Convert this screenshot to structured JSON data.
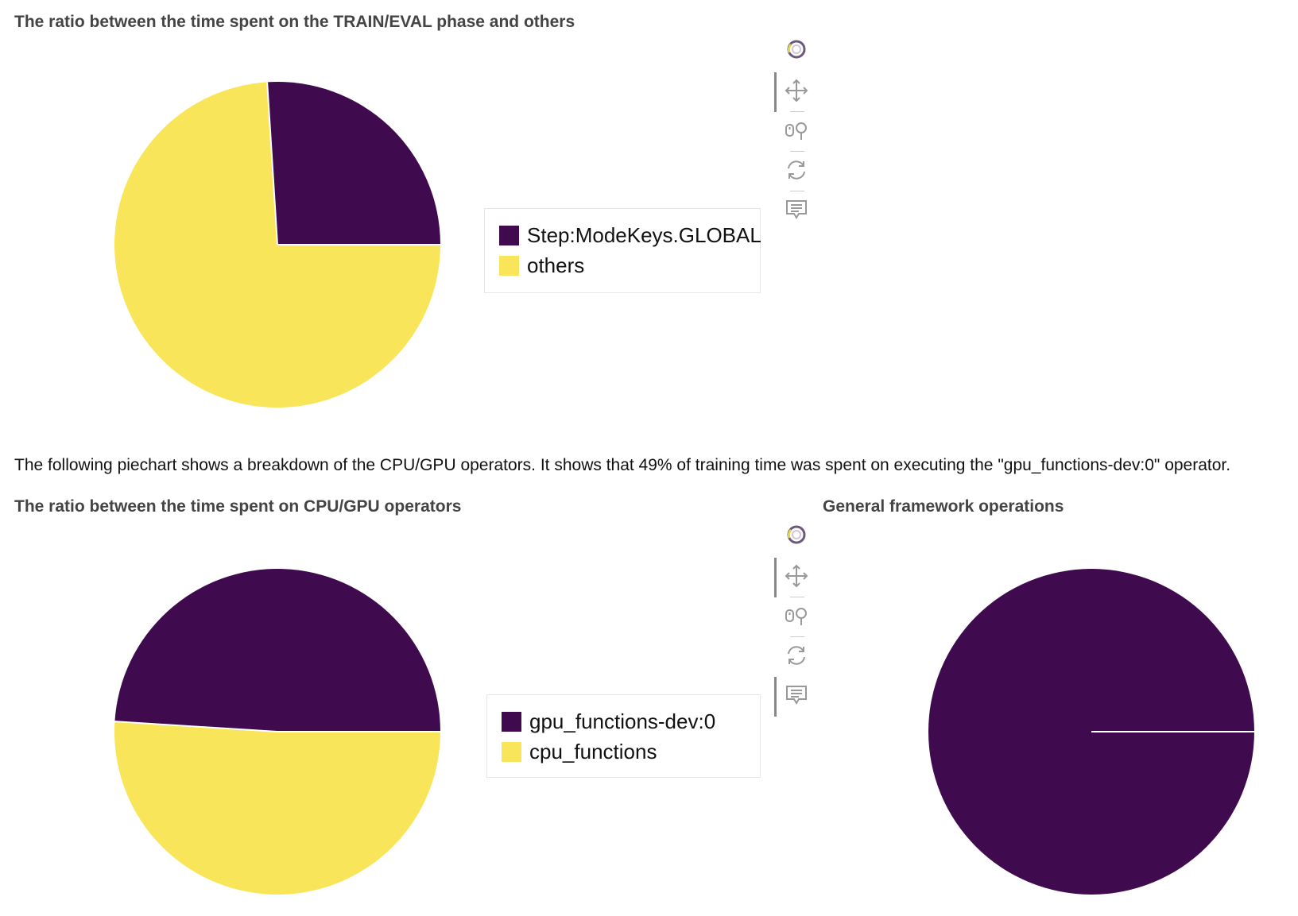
{
  "description": "The following piechart shows a breakdown of the CPU/GPU operators. It shows that 49% of training time was spent on executing the \"gpu_functions-dev:0\" operator.",
  "toolbar_icons": [
    "bokeh-logo-icon",
    "pan-icon",
    "wheel-zoom-icon",
    "reset-icon",
    "hover-icon"
  ],
  "colors": {
    "purple": "#3f0a4e",
    "yellow": "#f8e559"
  },
  "chart_data": [
    {
      "type": "pie",
      "title": "The ratio between the time spent on the TRAIN/EVAL phase and others",
      "legend_position": "right",
      "slices": [
        {
          "label": "Step:ModeKeys.GLOBAL",
          "value": 26,
          "color": "#3f0a4e"
        },
        {
          "label": "others",
          "value": 74,
          "color": "#f8e559"
        }
      ]
    },
    {
      "type": "pie",
      "title": "The ratio between the time spent on CPU/GPU operators",
      "legend_position": "right",
      "slices": [
        {
          "label": "gpu_functions-dev:0",
          "value": 49,
          "color": "#3f0a4e"
        },
        {
          "label": "cpu_functions",
          "value": 51,
          "color": "#f8e559"
        }
      ]
    },
    {
      "type": "pie",
      "title": "General framework operations",
      "slices": [
        {
          "value": 100,
          "color": "#3f0a4e"
        }
      ]
    }
  ]
}
